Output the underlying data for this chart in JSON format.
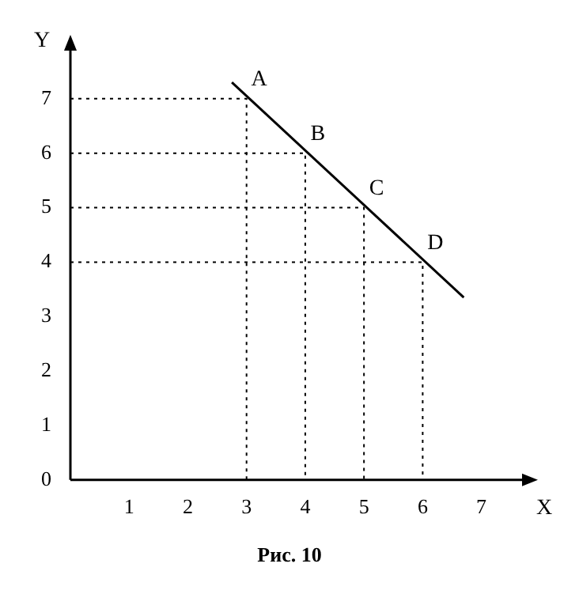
{
  "chart_data": {
    "type": "line",
    "xlabel": "X",
    "ylabel": "Y",
    "series": [
      {
        "color": "#000000",
        "x": [
          2.75,
          6.7
        ],
        "values": [
          7.3,
          3.35
        ]
      },
      {
        "color": "#000000",
        "line_style": "dotted",
        "x": [
          0,
          3,
          3
        ],
        "values": [
          7,
          7,
          0
        ]
      },
      {
        "color": "#000000",
        "line_style": "dotted",
        "x": [
          0,
          4,
          4
        ],
        "values": [
          6,
          6,
          0
        ]
      },
      {
        "color": "#000000",
        "line_style": "dotted",
        "x": [
          0,
          5,
          5
        ],
        "values": [
          5,
          5,
          0
        ]
      },
      {
        "color": "#000000",
        "line_style": "dotted",
        "x": [
          0,
          6,
          6
        ],
        "values": [
          4,
          4,
          0
        ]
      }
    ],
    "xlim": [
      0,
      7.8
    ],
    "ylim": [
      0,
      8
    ],
    "xticks": [
      1,
      2,
      3,
      4,
      5,
      6,
      7
    ],
    "yticks": [
      0,
      1,
      2,
      3,
      4,
      5,
      6,
      7
    ],
    "grid": false,
    "legend": false,
    "marker": "none",
    "line_style": "solid",
    "annotations": [
      {
        "text": "A",
        "x": 3,
        "y": 7
      },
      {
        "text": "B",
        "x": 4,
        "y": 6
      },
      {
        "text": "C",
        "x": 5,
        "y": 5
      },
      {
        "text": "D",
        "x": 6,
        "y": 4
      },
      "Рис. 10"
    ]
  }
}
